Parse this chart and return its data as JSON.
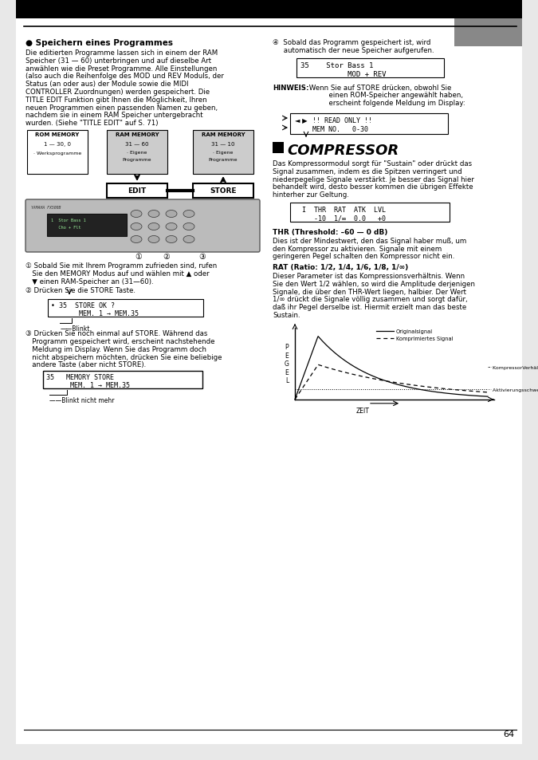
{
  "page_bg": "#ffffff",
  "page_num": "64",
  "section1_title": "● Speichern eines Programmes",
  "section1_body_lines": [
    "Die editierten Programme lassen sich in einem der RAM",
    "Speicher (31 — 60) unterbringen und auf dieselbe Art",
    "anwählen wie die Preset Programme. Alle Einstellungen",
    "(also auch die Reihenfolge des MOD und REV Moduls, der",
    "Status (an oder aus) der Module sowie die MIDI",
    "CONTROLLER Zuordnungen) werden gespeichert. Die",
    "TITLE EDIT Funktion gibt Ihnen die Möglichkeit, Ihren",
    "neuen Programmen einen passenden Namen zu geben,",
    "nachdem sie in einem RAM Speicher untergebracht",
    "wurden. (Siehe \"TITLE EDIT\" auf S. 71)"
  ],
  "step1_lines": [
    "① Sobald Sie mit Ihrem Programm zufrieden sind, rufen",
    "   Sie den MEMORY Modus auf und wählen mit ▲ oder",
    "   ▼ einen RAM-Speicher an (31—60)."
  ],
  "step2_line": "② Drücken Sie die STORE Taste.",
  "display1_line1": "• 35  STORE OK ?",
  "display1_line2": "       MEM. 1 → MEM.35",
  "blink1": "Blinkt",
  "step3_lines": [
    "③ Drücken Sie noch einmal auf STORE. Während das",
    "   Programm gespeichert wird, erscheint nachstehende",
    "   Meldung im Display. Wenn Sie das Programm doch",
    "   nicht abspeichern möchten, drücken Sie eine beliebige",
    "   andere Taste (aber nicht STORE)."
  ],
  "display2_line1": "35   MEMORY STORE",
  "display2_line2": "      MEM. 1 → MEM.35",
  "blink2": "Blinkt nicht mehr",
  "step4_lines": [
    "④  Sobald das Programm gespeichert ist, wird",
    "     automatisch der neue Speicher aufgerufen."
  ],
  "display3_line1": "35    Stor Bass 1",
  "display3_line2": "           MOD + REV",
  "hinweis_label": "HINWEIS:",
  "hinweis_lines": [
    " Wenn Sie auf STORE drücken, obwohl Sie",
    "          einen ROM-Speicher angewählt haben,",
    "          erscheint folgende Meldung im Display:"
  ],
  "display4_line1": "!! READ ONLY !!",
  "display4_line2": "MEM NO.   0-30",
  "compressor_title": "COMPRESSOR",
  "compressor_body_lines": [
    "Das Kompressormodul sorgt für \"Sustain\" oder drückt das",
    "Signal zusammen, indem es die Spitzen verringert und",
    "niederpegelige Signale verstärkt. Je besser das Signal hier",
    "behandelt wird, desto besser kommen die übrigen Effekte",
    "hinterher zur Geltung."
  ],
  "display5_line1": "  I  THR  RAT  ATK  LVL",
  "display5_line2": "     -10  1/∞  0.0   +0",
  "thr_title": "THR (Threshold: –60 — 0 dB)",
  "thr_body_lines": [
    "Dies ist der Mindestwert, den das Signal haber muß, um",
    "den Kompressor zu aktivieren. Signale mit einem",
    "geringeren Pegel schalten den Kompressor nicht ein."
  ],
  "rat_title": "RAT (Ratio: 1/2, 1/4, 1/6, 1/8, 1/∞)",
  "rat_body_lines": [
    "Dieser Parameter ist das Kompressionsverhältnis. Wenn",
    "Sie den Wert 1/2 wählen, so wird die Amplitude derjenigen",
    "Signale, die über den THR-Wert liegen, halbier. Der Wert",
    "1/∞ drückt die Signale völlig zusammen und sorgt dafür,",
    "daß ihr Pegel derselbe ist. Hiermit erzielt man das beste",
    "Sustain."
  ],
  "graph_legend1": "Originalsignal",
  "graph_legend2": "Komprimiertes Signal",
  "graph_rat_label": "KompressorVerhältnis (RAT)",
  "graph_thr_label": "Aktivierungsschwelle (THR)",
  "graph_x_label": "ZEIT",
  "graph_y_label": "P\nE\nG\nE\nL"
}
